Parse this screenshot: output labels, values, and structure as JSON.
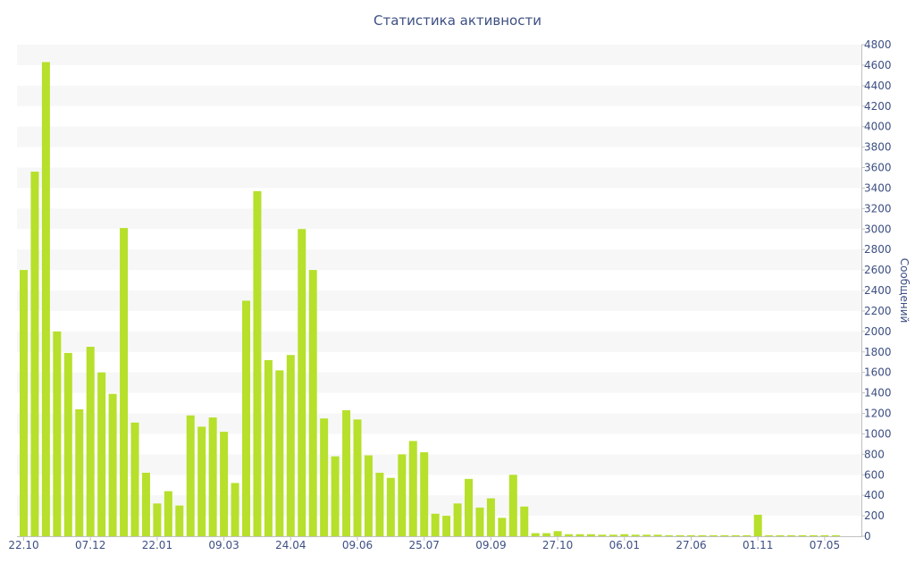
{
  "chart_data": {
    "type": "bar",
    "title": "Статистика активности",
    "ylabel": "Сообщений",
    "xlabel": "",
    "ylim": [
      0,
      4800
    ],
    "y_ticks": [
      0,
      200,
      400,
      600,
      800,
      1000,
      1200,
      1400,
      1600,
      1800,
      2000,
      2200,
      2400,
      2600,
      2800,
      3000,
      3200,
      3400,
      3600,
      3800,
      4000,
      4200,
      4400,
      4600,
      4800
    ],
    "y_axis_position": "right",
    "grid": "alternating horizontal bands",
    "bar_color": "#b6e02b",
    "band_color": "#f7f7f7",
    "text_color": "#3d4f83",
    "x_tick_labels": [
      {
        "label": "22.10",
        "index": 0
      },
      {
        "label": "07.12",
        "index": 6
      },
      {
        "label": "22.01",
        "index": 12
      },
      {
        "label": "09.03",
        "index": 18
      },
      {
        "label": "24.04",
        "index": 24
      },
      {
        "label": "09.06",
        "index": 30
      },
      {
        "label": "25.07",
        "index": 36
      },
      {
        "label": "09.09",
        "index": 42
      },
      {
        "label": "27.10",
        "index": 48
      },
      {
        "label": "06.01",
        "index": 54
      },
      {
        "label": "27.06",
        "index": 60
      },
      {
        "label": "01.11",
        "index": 66
      },
      {
        "label": "07.05",
        "index": 72
      }
    ],
    "values": [
      2600,
      3560,
      4630,
      2000,
      1790,
      1240,
      1850,
      1600,
      1390,
      3010,
      1110,
      620,
      320,
      440,
      300,
      1180,
      1070,
      1160,
      1020,
      520,
      2300,
      3370,
      1720,
      1620,
      1770,
      3000,
      2600,
      1150,
      780,
      1230,
      1140,
      790,
      620,
      570,
      800,
      930,
      820,
      220,
      200,
      320,
      560,
      280,
      370,
      180,
      600,
      290,
      30,
      30,
      50,
      20,
      20,
      20,
      15,
      15,
      20,
      15,
      15,
      15,
      10,
      10,
      10,
      10,
      10,
      10,
      10,
      10,
      210,
      10,
      10,
      10,
      10,
      10,
      10,
      10
    ]
  }
}
